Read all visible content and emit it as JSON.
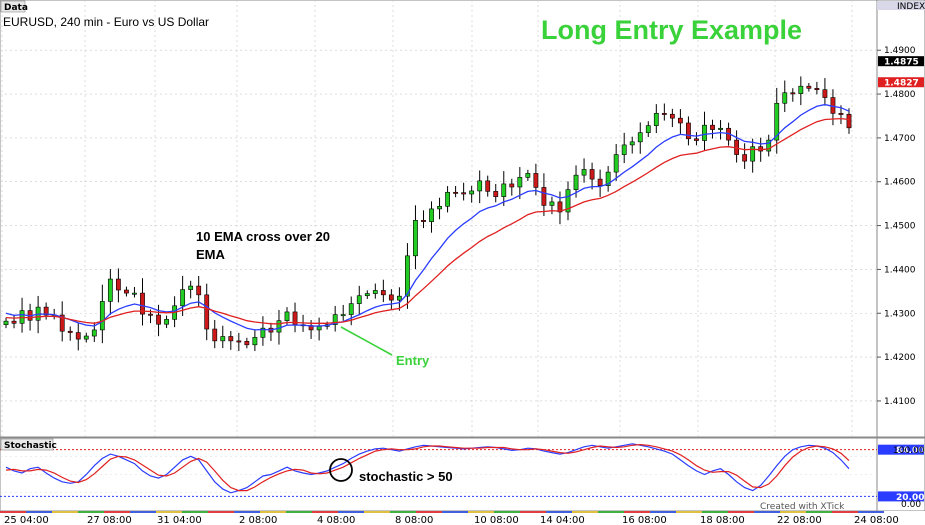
{
  "chart_data": [
    {
      "type": "candlestick",
      "panel_label": "Data",
      "title": "EURUSD, 240 min - Euro vs US Dollar",
      "headline": "Long Entry Example",
      "ylim": [
        1.402,
        1.501
      ],
      "yticks": [
        "1.4900",
        "1.4800",
        "1.4700",
        "1.4600",
        "1.4500",
        "1.4400",
        "1.4300",
        "1.4200",
        "1.4100"
      ],
      "ytick_values": [
        1.49,
        1.48,
        1.47,
        1.46,
        1.45,
        1.44,
        1.43,
        1.42,
        1.41
      ],
      "index_label": "INDEX",
      "price_markers": [
        {
          "label": "1.4875",
          "value": 1.4875,
          "color": "#000000"
        },
        {
          "label": "1.4827",
          "value": 1.4827,
          "color": "#e02020"
        }
      ],
      "closes": [
        1.4282,
        1.4277,
        1.4306,
        1.4284,
        1.4314,
        1.4296,
        1.4296,
        1.4259,
        1.4256,
        1.4241,
        1.4248,
        1.4262,
        1.4327,
        1.4378,
        1.4353,
        1.4346,
        1.4346,
        1.4298,
        1.4296,
        1.4275,
        1.4286,
        1.4317,
        1.4354,
        1.4362,
        1.4342,
        1.4264,
        1.4237,
        1.4247,
        1.4237,
        1.4236,
        1.4228,
        1.4245,
        1.4266,
        1.4257,
        1.4283,
        1.4303,
        1.4274,
        1.4272,
        1.4262,
        1.427,
        1.4274,
        1.4297,
        1.4297,
        1.4322,
        1.434,
        1.4345,
        1.4352,
        1.4342,
        1.433,
        1.4339,
        1.4431,
        1.4512,
        1.4509,
        1.4538,
        1.4544,
        1.4576,
        1.4575,
        1.4572,
        1.4579,
        1.4602,
        1.4578,
        1.4566,
        1.4595,
        1.4588,
        1.461,
        1.4619,
        1.4587,
        1.4546,
        1.4554,
        1.4531,
        1.4582,
        1.4615,
        1.4628,
        1.4606,
        1.4591,
        1.4622,
        1.4662,
        1.4684,
        1.4691,
        1.4712,
        1.4728,
        1.4756,
        1.4754,
        1.4745,
        1.4734,
        1.4698,
        1.4694,
        1.4729,
        1.4719,
        1.4722,
        1.4695,
        1.4662,
        1.4647,
        1.468,
        1.467,
        1.4695,
        1.4779,
        1.4803,
        1.4801,
        1.4818,
        1.4813,
        1.481,
        1.4792,
        1.4756,
        1.4754,
        1.4723
      ],
      "series": [
        {
          "name": "10 EMA",
          "color": "#2a3cff",
          "values": [
            1.43,
            1.4295,
            1.4297,
            1.4294,
            1.4298,
            1.4298,
            1.4297,
            1.4291,
            1.4285,
            1.4278,
            1.4273,
            1.4271,
            1.4281,
            1.4299,
            1.4309,
            1.4316,
            1.4321,
            1.4317,
            1.4313,
            1.4306,
            1.4303,
            1.4305,
            1.4314,
            1.4323,
            1.4326,
            1.4315,
            1.4301,
            1.4291,
            1.4282,
            1.4274,
            1.4266,
            1.4262,
            1.4263,
            1.4262,
            1.4266,
            1.4273,
            1.4273,
            1.4273,
            1.4271,
            1.4271,
            1.4272,
            1.4277,
            1.4281,
            1.4289,
            1.4297,
            1.4306,
            1.4314,
            1.4319,
            1.4321,
            1.4324,
            1.4344,
            1.4375,
            1.4399,
            1.4425,
            1.4447,
            1.4471,
            1.4489,
            1.4504,
            1.4517,
            1.4532,
            1.454,
            1.4545,
            1.4554,
            1.456,
            1.4569,
            1.4578,
            1.458,
            1.4574,
            1.457,
            1.4563,
            1.4566,
            1.4575,
            1.4585,
            1.4589,
            1.4589,
            1.4595,
            1.4608,
            1.4622,
            1.4634,
            1.4648,
            1.4662,
            1.4679,
            1.4692,
            1.4702,
            1.4708,
            1.4706,
            1.4704,
            1.4708,
            1.471,
            1.4712,
            1.471,
            1.4701,
            1.4692,
            1.469,
            1.4686,
            1.4688,
            1.4705,
            1.4723,
            1.4737,
            1.4752,
            1.4763,
            1.4772,
            1.4776,
            1.4772,
            1.4769,
            1.4761
          ]
        },
        {
          "name": "20 EMA",
          "color": "#e02020",
          "values": [
            1.429,
            1.4289,
            1.429,
            1.429,
            1.4292,
            1.4293,
            1.4293,
            1.429,
            1.4286,
            1.4282,
            1.4279,
            1.4277,
            1.4282,
            1.4291,
            1.4296,
            1.4301,
            1.4305,
            1.4305,
            1.4304,
            1.4302,
            1.4301,
            1.4302,
            1.4307,
            1.4312,
            1.4315,
            1.4311,
            1.4305,
            1.43,
            1.4294,
            1.4289,
            1.4283,
            1.428,
            1.4278,
            1.4276,
            1.4276,
            1.4279,
            1.4279,
            1.4278,
            1.4277,
            1.4277,
            1.4277,
            1.4279,
            1.428,
            1.4284,
            1.429,
            1.4295,
            1.4301,
            1.4305,
            1.4308,
            1.4311,
            1.4322,
            1.434,
            1.4356,
            1.4373,
            1.439,
            1.4408,
            1.4423,
            1.4437,
            1.445,
            1.4464,
            1.4475,
            1.4484,
            1.4495,
            1.4504,
            1.4514,
            1.4525,
            1.4531,
            1.4532,
            1.4534,
            1.4533,
            1.4538,
            1.4546,
            1.4554,
            1.4559,
            1.4562,
            1.4569,
            1.4578,
            1.4589,
            1.4599,
            1.461,
            1.4621,
            1.4633,
            1.4644,
            1.4653,
            1.466,
            1.4663,
            1.4665,
            1.4671,
            1.4675,
            1.4679,
            1.468,
            1.4677,
            1.4673,
            1.4674,
            1.4673,
            1.4675,
            1.4686,
            1.4697,
            1.4708,
            1.4719,
            1.4728,
            1.4737,
            1.4742,
            1.4743,
            1.4744,
            1.4742
          ]
        }
      ],
      "annotations": [
        {
          "text": "10 EMA cross over 20 EMA",
          "color": "#000000"
        },
        {
          "text": "Entry",
          "color": "#3ad23a"
        }
      ],
      "xticks": [
        "25 04:00",
        "27 08:00",
        "31 04:00",
        "2 08:00",
        "4 08:00",
        "8 08:00",
        "10 08:00",
        "14 04:00",
        "16 08:00",
        "18 08:00",
        "22 08:00",
        "24 08:00"
      ],
      "watermark": "Created with XTick"
    },
    {
      "type": "line",
      "panel_label": "Stochastic",
      "ylim": [
        0,
        100
      ],
      "yticks": [
        "100.00",
        "0.00"
      ],
      "levels": [
        {
          "label": "84.00",
          "value": 84,
          "color": "#e02020"
        },
        {
          "label": "20.00",
          "value": 20,
          "color": "#2a3cff"
        }
      ],
      "annotation": "stochastic > 50",
      "series": [
        {
          "name": "%K",
          "color": "#2a3cff",
          "values": [
            60,
            55,
            52,
            58,
            60,
            52,
            45,
            40,
            38,
            40,
            50,
            62,
            72,
            78,
            75,
            70,
            65,
            55,
            48,
            45,
            50,
            60,
            70,
            75,
            70,
            55,
            40,
            30,
            25,
            28,
            32,
            40,
            48,
            50,
            55,
            60,
            55,
            52,
            50,
            52,
            55,
            60,
            65,
            72,
            78,
            82,
            85,
            86,
            84,
            82,
            85,
            88,
            90,
            89,
            88,
            87,
            86,
            85,
            86,
            87,
            88,
            87,
            85,
            83,
            84,
            86,
            85,
            82,
            80,
            78,
            80,
            84,
            88,
            90,
            88,
            86,
            88,
            90,
            92,
            90,
            88,
            85,
            82,
            78,
            70,
            62,
            55,
            50,
            55,
            58,
            50,
            40,
            32,
            28,
            35,
            48,
            62,
            75,
            84,
            88,
            90,
            89,
            86,
            80,
            70,
            58
          ]
        },
        {
          "name": "%D",
          "color": "#e02020",
          "values": [
            56,
            57,
            55,
            55,
            57,
            56,
            52,
            46,
            41,
            39,
            43,
            51,
            61,
            71,
            75,
            74,
            70,
            63,
            56,
            49,
            48,
            52,
            60,
            68,
            72,
            67,
            55,
            42,
            32,
            28,
            28,
            33,
            40,
            46,
            51,
            55,
            57,
            56,
            52,
            51,
            52,
            56,
            60,
            66,
            72,
            77,
            82,
            84,
            85,
            84,
            84,
            85,
            88,
            89,
            89,
            88,
            87,
            86,
            86,
            86,
            87,
            87,
            87,
            85,
            84,
            84,
            85,
            84,
            82,
            80,
            79,
            81,
            84,
            87,
            89,
            88,
            87,
            88,
            90,
            91,
            90,
            88,
            85,
            82,
            77,
            70,
            62,
            56,
            53,
            54,
            54,
            49,
            41,
            33,
            32,
            37,
            48,
            62,
            74,
            82,
            87,
            89,
            88,
            85,
            79,
            69
          ]
        }
      ]
    }
  ]
}
